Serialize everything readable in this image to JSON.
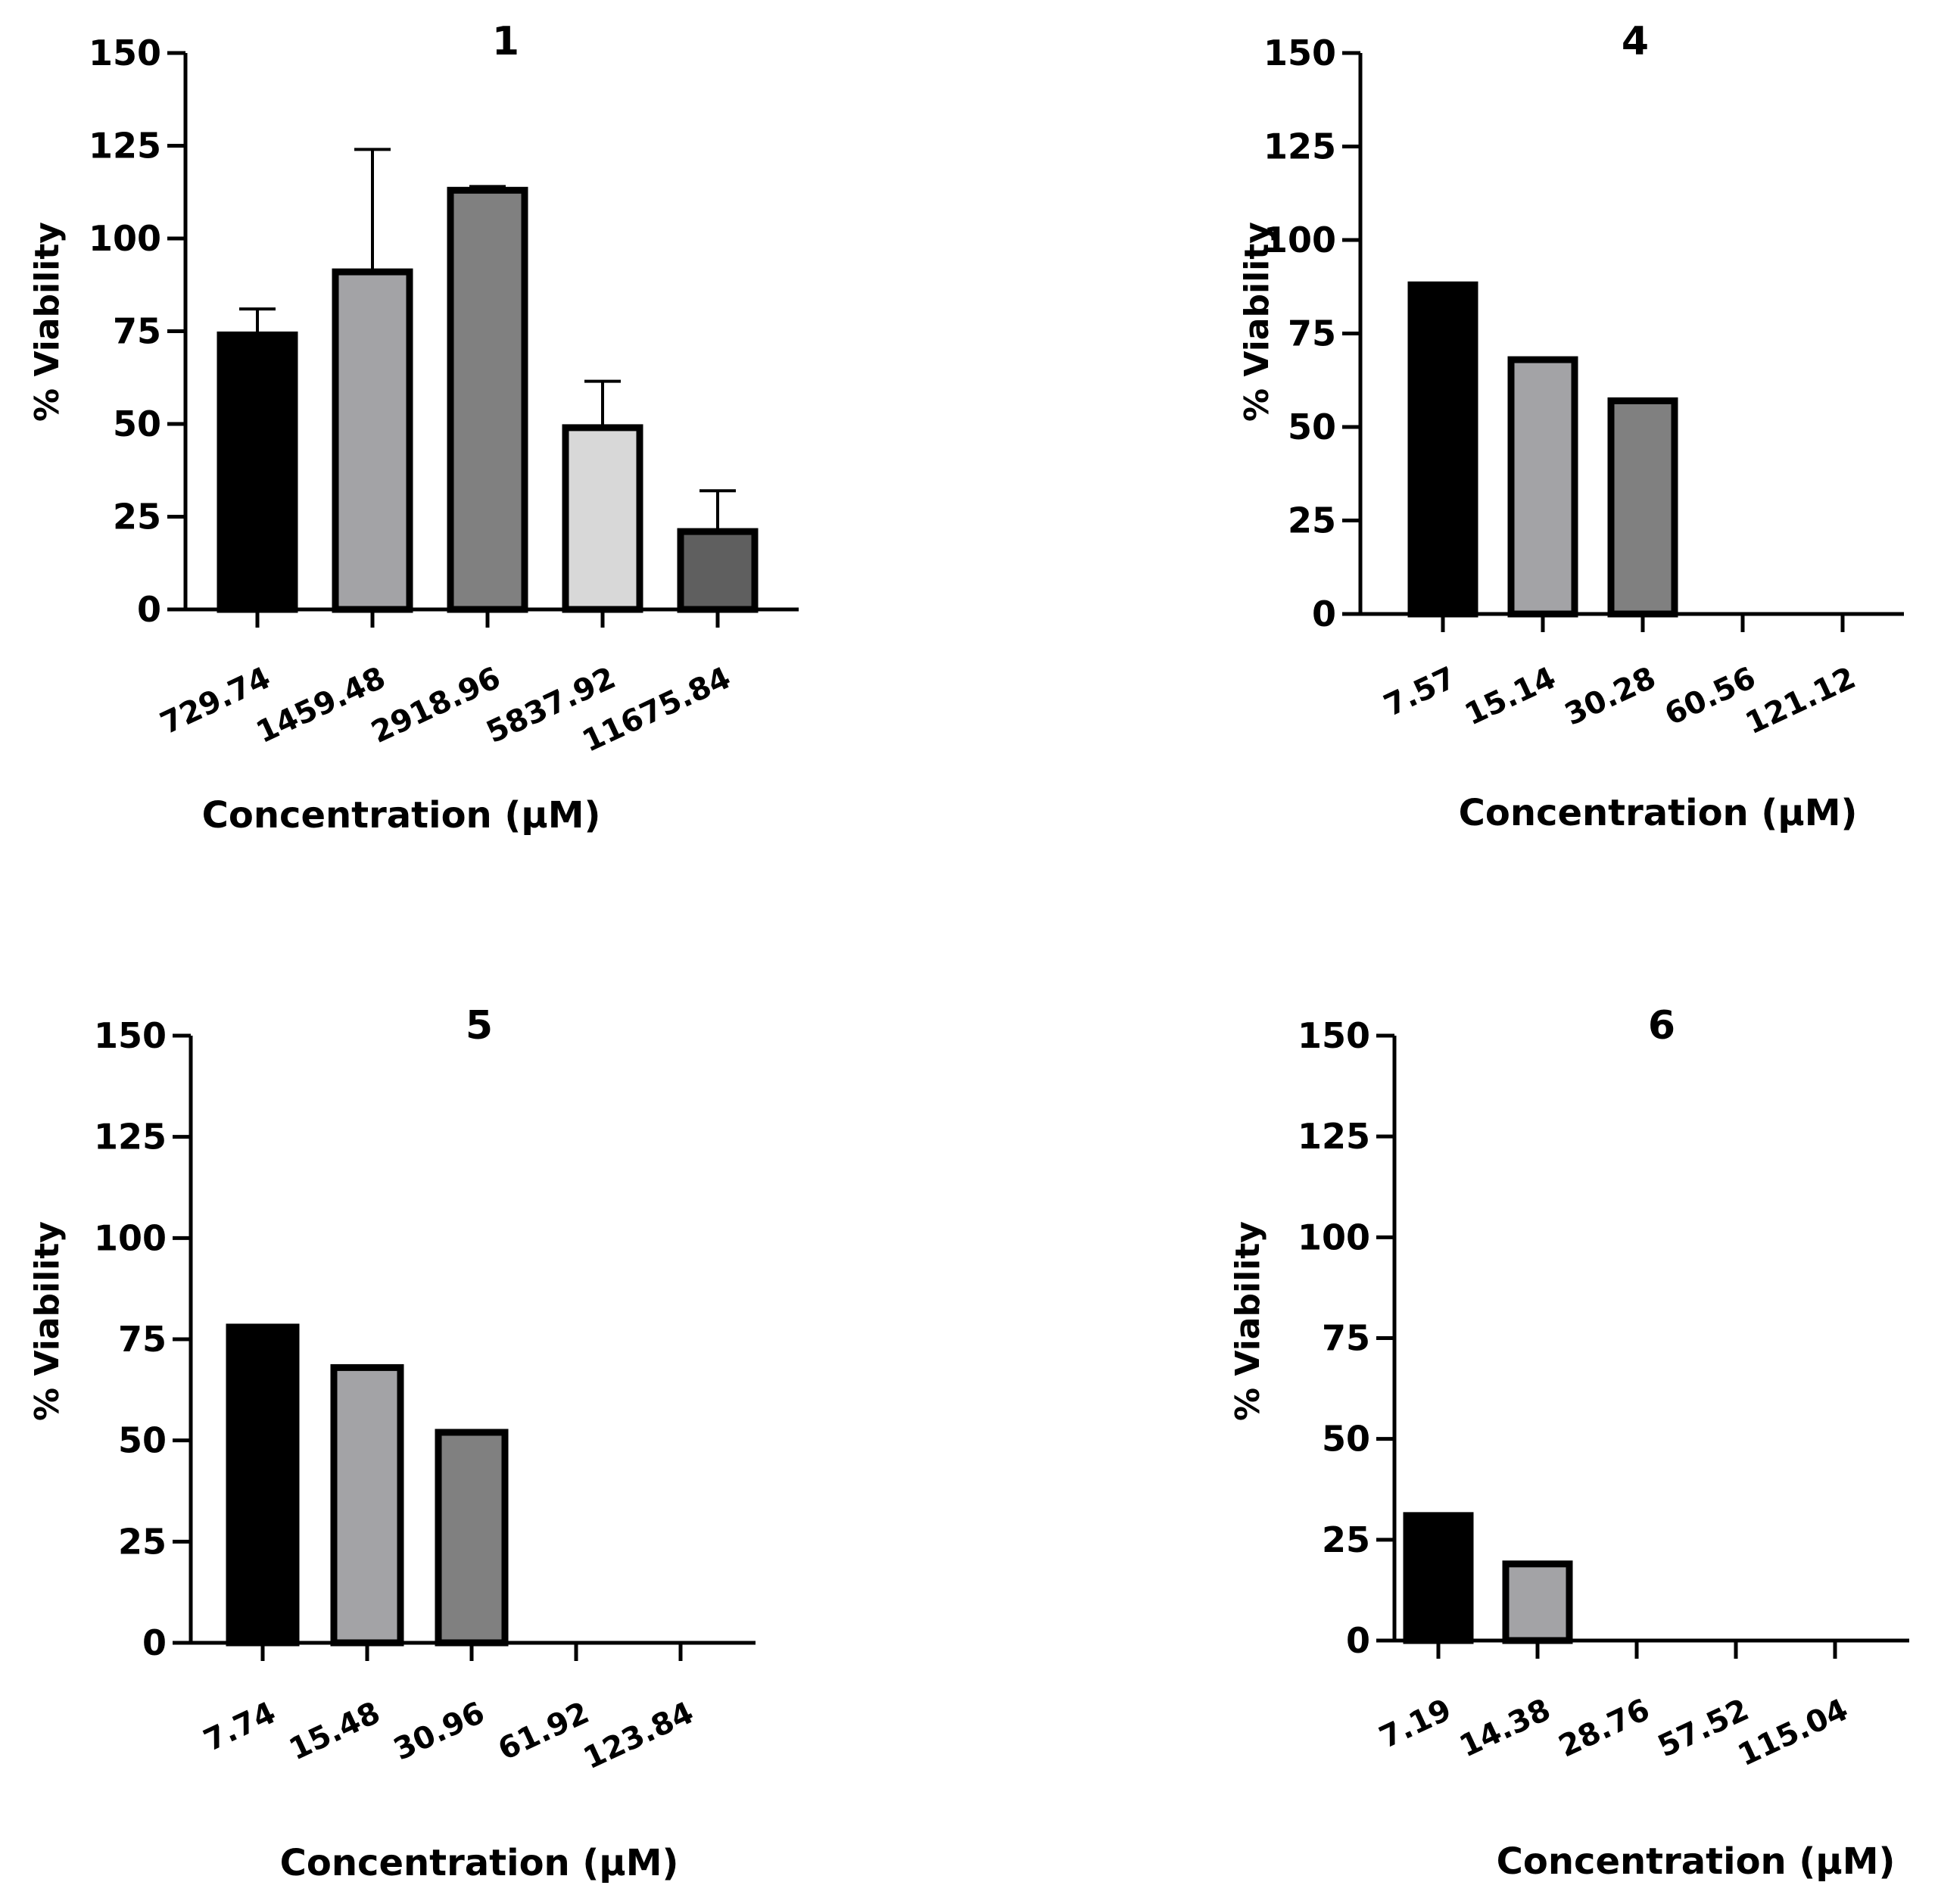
{
  "chart_data": [
    {
      "type": "bar",
      "title": "1",
      "xlabel": "Concentration (µM)",
      "ylabel": "% Viability",
      "ylim": [
        0,
        150
      ],
      "yticks": [
        "0",
        "25",
        "50",
        "75",
        "100",
        "125",
        "150"
      ],
      "categories": [
        "729.74",
        "1459.48",
        "2918.96",
        "5837.92",
        "11675.84"
      ],
      "values": [
        74,
        91,
        113,
        49,
        21
      ],
      "errors": [
        7,
        33,
        1,
        12.5,
        11
      ],
      "colors": [
        "#000000",
        "#a3a3a6",
        "#808080",
        "#d8d8d8",
        "#5f5f5f"
      ]
    },
    {
      "type": "bar",
      "title": "4",
      "xlabel": "Concentration (µM)",
      "ylabel": "% Viability",
      "ylim": [
        0,
        150
      ],
      "yticks": [
        "0",
        "25",
        "50",
        "75",
        "100",
        "125",
        "150"
      ],
      "categories": [
        "7.57",
        "15.14",
        "30.28",
        "60.56",
        "121.12"
      ],
      "values": [
        88,
        68,
        57,
        0,
        0
      ],
      "errors": [
        0.4,
        0,
        0.4,
        0,
        0
      ],
      "colors": [
        "#000000",
        "#a3a3a6",
        "#808080",
        "#d8d8d8",
        "#5f5f5f"
      ]
    },
    {
      "type": "bar",
      "title": "5",
      "xlabel": "Concentration (µM)",
      "ylabel": "% Viability",
      "ylim": [
        0,
        150
      ],
      "yticks": [
        "0",
        "25",
        "50",
        "75",
        "100",
        "125",
        "150"
      ],
      "categories": [
        "7.74",
        "15.48",
        "30.96",
        "61.92",
        "123.84"
      ],
      "values": [
        78,
        68,
        52,
        0,
        0
      ],
      "errors": [
        0.4,
        0,
        0.4,
        0,
        0
      ],
      "colors": [
        "#000000",
        "#a3a3a6",
        "#808080",
        "#d8d8d8",
        "#5f5f5f"
      ]
    },
    {
      "type": "bar",
      "title": "6",
      "xlabel": "Concentration (µM)",
      "ylabel": "% Viability",
      "ylim": [
        0,
        150
      ],
      "yticks": [
        "0",
        "25",
        "50",
        "75",
        "100",
        "125",
        "150"
      ],
      "categories": [
        "7.19",
        "14.38",
        "28.76",
        "57.52",
        "115.04"
      ],
      "values": [
        31,
        19,
        0,
        0,
        0
      ],
      "errors": [
        0,
        0,
        0,
        0,
        0
      ],
      "colors": [
        "#000000",
        "#a3a3a6",
        "#808080",
        "#d8d8d8",
        "#5f5f5f"
      ]
    }
  ]
}
